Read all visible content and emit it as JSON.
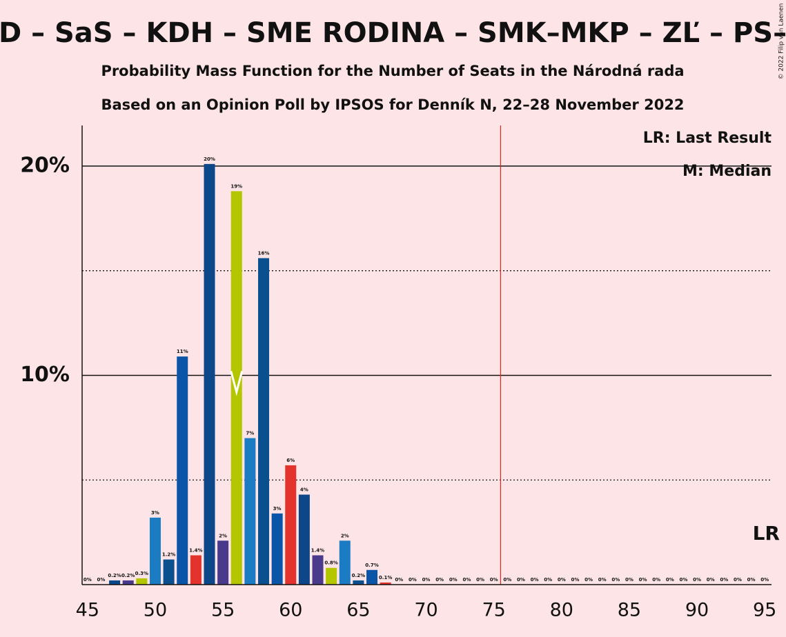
{
  "chart_data": {
    "type": "bar",
    "title": "D – SaS – KDH – SME RODINA – SMK–MKP – ZĽ – PS–",
    "subtitle": "Probability Mass Function for the Number of Seats in the Národná rada",
    "subtitle2": "Based on an Opinion Poll by IPSOS for Denník N, 22–28 November 2022",
    "copyright": "© 2022 Filip van Laenen",
    "legend": [
      "LR: Last Result",
      "M: Median"
    ],
    "last_result_label": "LR",
    "last_result": 76,
    "median": 56,
    "categories": [
      45,
      46,
      47,
      48,
      49,
      50,
      51,
      52,
      53,
      54,
      55,
      56,
      57,
      58,
      59,
      60,
      61,
      62,
      63,
      64,
      65,
      66,
      67,
      68,
      69,
      70,
      71,
      72,
      73,
      74,
      75,
      76,
      77,
      78,
      79,
      80,
      81,
      82,
      83,
      84,
      85,
      86,
      87,
      88,
      89,
      90,
      91,
      92,
      93,
      94,
      95
    ],
    "values": [
      0,
      0,
      0.2,
      0.2,
      0.3,
      3.2,
      1.2,
      10.9,
      1.4,
      20.1,
      2.1,
      18.8,
      7.0,
      15.6,
      3.4,
      5.7,
      4.3,
      1.4,
      0.8,
      2.1,
      0.2,
      0.7,
      0.1,
      0,
      0,
      0,
      0,
      0,
      0,
      0,
      0,
      0,
      0,
      0,
      0,
      0,
      0,
      0,
      0,
      0,
      0,
      0,
      0,
      0,
      0,
      0,
      0,
      0,
      0,
      0,
      0
    ],
    "value_labels": [
      "0%",
      "0%",
      "0.2%",
      "0.2%",
      "0.3%",
      "3%",
      "1.2%",
      "11%",
      "1.4%",
      "20%",
      "2%",
      "19%",
      "7%",
      "16%",
      "3%",
      "6%",
      "4%",
      "1.4%",
      "0.8%",
      "2%",
      "0.2%",
      "0.7%",
      "0.1%",
      "0%",
      "0%",
      "0%",
      "0%",
      "0%",
      "0%",
      "0%",
      "0%",
      "0%",
      "0%",
      "0%",
      "0%",
      "0%",
      "0%",
      "0%",
      "0%",
      "0%",
      "0%",
      "0%",
      "0%",
      "0%",
      "0%",
      "0%",
      "0%",
      "0%",
      "0%",
      "0%",
      "0%"
    ],
    "colors": [
      "#0b55a8",
      "#e2332c",
      "#0c4789",
      "#4a3a8c",
      "#b3c600",
      "#1b7cc4",
      "#0a4f8e",
      "#0b55a8",
      "#e2332c",
      "#0c4789",
      "#4a3a8c",
      "#b3c600",
      "#1b7cc4",
      "#0a4f8e",
      "#0b55a8",
      "#e2332c",
      "#0c4789",
      "#4a3a8c",
      "#b3c600",
      "#1b7cc4",
      "#0a4f8e",
      "#0b55a8",
      "#e2332c",
      "#0c4789",
      "#4a3a8c",
      "#b3c600",
      "#1b7cc4",
      "#0a4f8e",
      "#0b55a8",
      "#e2332c",
      "#0c4789",
      "#4a3a8c",
      "#b3c600",
      "#1b7cc4",
      "#0a4f8e",
      "#0b55a8",
      "#e2332c",
      "#0c4789",
      "#4a3a8c",
      "#b3c600",
      "#1b7cc4",
      "#0a4f8e",
      "#0b55a8",
      "#e2332c",
      "#0c4789",
      "#4a3a8c",
      "#b3c600",
      "#1b7cc4",
      "#0a4f8e",
      "#0b55a8",
      "#e2332c"
    ],
    "xlim": [
      44.6,
      95.5
    ],
    "xticks": [
      45,
      50,
      55,
      60,
      65,
      70,
      75,
      80,
      85,
      90,
      95
    ],
    "ylim": [
      0,
      21.94
    ],
    "yticks": [
      {
        "value": 10,
        "label": "10%"
      },
      {
        "value": 20,
        "label": "20%"
      }
    ],
    "minor_yticks": [
      5,
      15
    ],
    "lr_color": "#e0241b"
  }
}
